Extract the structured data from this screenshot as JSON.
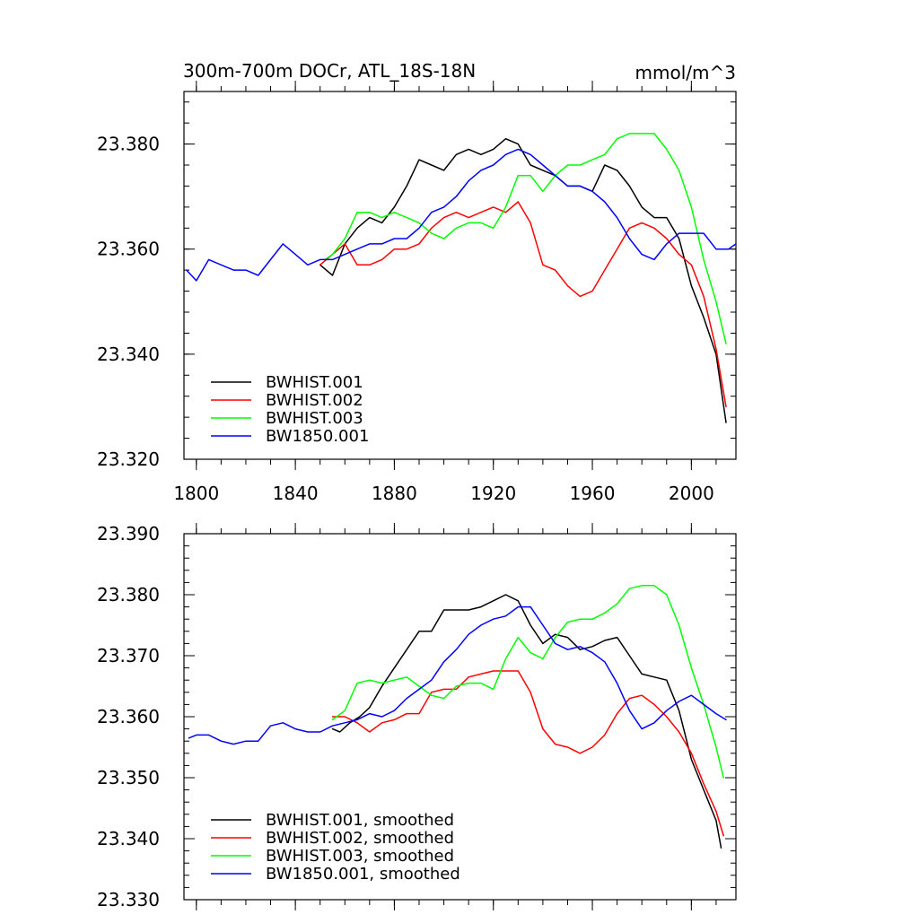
{
  "chart_data": [
    {
      "type": "line",
      "title": "300m-700m DOCr, ATL_18S-18N",
      "units": "mmol/m^3",
      "xlabel": "",
      "ylabel": "",
      "xlim": [
        1795,
        2018
      ],
      "ylim": [
        23.32,
        23.39
      ],
      "x_ticks": [
        1800,
        1840,
        1880,
        1920,
        1960,
        2000
      ],
      "y_ticks": [
        23.32,
        23.34,
        23.36,
        23.38
      ],
      "y_tick_labels": [
        "23.320",
        "23.340",
        "23.360",
        "23.380"
      ],
      "x_tick_labels": [
        "1800",
        "1840",
        "1880",
        "1920",
        "1960",
        "2000"
      ],
      "legend_position": "bottom-left",
      "series": [
        {
          "name": "BWHIST.001",
          "color": "#000000",
          "x": [
            1850,
            1855,
            1860,
            1865,
            1870,
            1875,
            1880,
            1885,
            1890,
            1895,
            1900,
            1905,
            1910,
            1915,
            1920,
            1925,
            1930,
            1935,
            1940,
            1945,
            1950,
            1955,
            1960,
            1965,
            1970,
            1975,
            1980,
            1985,
            1990,
            1995,
            2000,
            2005,
            2010,
            2014
          ],
          "values": [
            23.357,
            23.355,
            23.361,
            23.364,
            23.366,
            23.365,
            23.368,
            23.372,
            23.377,
            23.376,
            23.375,
            23.378,
            23.379,
            23.378,
            23.379,
            23.381,
            23.38,
            23.376,
            23.375,
            23.374,
            23.372,
            23.372,
            23.371,
            23.376,
            23.375,
            23.372,
            23.368,
            23.366,
            23.366,
            23.362,
            23.353,
            23.347,
            23.34,
            23.327
          ]
        },
        {
          "name": "BWHIST.002",
          "color": "#ff0000",
          "x": [
            1850,
            1855,
            1860,
            1865,
            1870,
            1875,
            1880,
            1885,
            1890,
            1895,
            1900,
            1905,
            1910,
            1915,
            1920,
            1925,
            1930,
            1935,
            1940,
            1945,
            1950,
            1955,
            1960,
            1965,
            1970,
            1975,
            1980,
            1985,
            1990,
            1995,
            2000,
            2005,
            2010,
            2014
          ],
          "values": [
            23.357,
            23.359,
            23.361,
            23.357,
            23.357,
            23.358,
            23.36,
            23.36,
            23.361,
            23.364,
            23.366,
            23.367,
            23.366,
            23.367,
            23.368,
            23.367,
            23.369,
            23.365,
            23.357,
            23.356,
            23.353,
            23.351,
            23.352,
            23.356,
            23.36,
            23.364,
            23.365,
            23.364,
            23.362,
            23.359,
            23.357,
            23.351,
            23.341,
            23.33
          ]
        },
        {
          "name": "BWHIST.003",
          "color": "#00ff00",
          "x": [
            1852,
            1855,
            1860,
            1865,
            1870,
            1875,
            1880,
            1885,
            1890,
            1895,
            1900,
            1905,
            1910,
            1915,
            1920,
            1925,
            1930,
            1935,
            1940,
            1945,
            1950,
            1955,
            1960,
            1965,
            1970,
            1975,
            1980,
            1985,
            1990,
            1995,
            2000,
            2005,
            2010,
            2014
          ],
          "values": [
            23.358,
            23.359,
            23.362,
            23.367,
            23.367,
            23.366,
            23.367,
            23.366,
            23.365,
            23.363,
            23.362,
            23.364,
            23.365,
            23.365,
            23.364,
            23.368,
            23.374,
            23.374,
            23.371,
            23.374,
            23.376,
            23.376,
            23.377,
            23.378,
            23.381,
            23.382,
            23.382,
            23.382,
            23.379,
            23.375,
            23.368,
            23.358,
            23.35,
            23.342
          ]
        },
        {
          "name": "BW1850.001",
          "color": "#0000ff",
          "x": [
            1796,
            1800,
            1805,
            1810,
            1815,
            1820,
            1825,
            1830,
            1835,
            1840,
            1845,
            1850,
            1855,
            1860,
            1865,
            1870,
            1875,
            1880,
            1885,
            1890,
            1895,
            1900,
            1905,
            1910,
            1915,
            1920,
            1925,
            1930,
            1935,
            1940,
            1945,
            1950,
            1955,
            1960,
            1965,
            1970,
            1975,
            1980,
            1985,
            1990,
            1995,
            2000,
            2005,
            2010,
            2015,
            2018
          ],
          "values": [
            23.356,
            23.354,
            23.358,
            23.357,
            23.356,
            23.356,
            23.355,
            23.358,
            23.361,
            23.359,
            23.357,
            23.358,
            23.358,
            23.359,
            23.36,
            23.361,
            23.361,
            23.362,
            23.362,
            23.364,
            23.367,
            23.368,
            23.37,
            23.373,
            23.375,
            23.376,
            23.378,
            23.379,
            23.378,
            23.376,
            23.374,
            23.372,
            23.372,
            23.371,
            23.369,
            23.366,
            23.362,
            23.359,
            23.358,
            23.361,
            23.363,
            23.363,
            23.363,
            23.36,
            23.36,
            23.361
          ]
        }
      ]
    },
    {
      "type": "line",
      "title": "",
      "xlabel": "",
      "ylabel": "",
      "xlim": [
        1795,
        2018
      ],
      "ylim": [
        23.33,
        23.39
      ],
      "x_ticks": [
        1800,
        1840,
        1880,
        1920,
        1960,
        2000
      ],
      "y_ticks": [
        23.33,
        23.34,
        23.35,
        23.36,
        23.37,
        23.38,
        23.39
      ],
      "y_tick_labels": [
        "23.330",
        "23.340",
        "23.350",
        "23.360",
        "23.370",
        "23.380",
        "23.390"
      ],
      "legend_position": "bottom-left",
      "series": [
        {
          "name": "BWHIST.001, smoothed",
          "color": "#000000",
          "x": [
            1855,
            1858,
            1862,
            1866,
            1870,
            1875,
            1880,
            1885,
            1890,
            1895,
            1900,
            1905,
            1910,
            1915,
            1920,
            1925,
            1930,
            1935,
            1940,
            1945,
            1950,
            1955,
            1960,
            1965,
            1970,
            1975,
            1980,
            1985,
            1990,
            1995,
            2000,
            2005,
            2010,
            2012
          ],
          "values": [
            23.358,
            23.3575,
            23.359,
            23.36,
            23.3615,
            23.365,
            23.368,
            23.371,
            23.374,
            23.374,
            23.3775,
            23.3775,
            23.3775,
            23.378,
            23.379,
            23.38,
            23.379,
            23.375,
            23.372,
            23.3735,
            23.373,
            23.371,
            23.3715,
            23.3725,
            23.373,
            23.37,
            23.367,
            23.3665,
            23.366,
            23.361,
            23.353,
            23.348,
            23.343,
            23.3385
          ]
        },
        {
          "name": "BWHIST.002, smoothed",
          "color": "#ff0000",
          "x": [
            1855,
            1860,
            1865,
            1870,
            1875,
            1880,
            1885,
            1890,
            1895,
            1900,
            1905,
            1910,
            1915,
            1920,
            1925,
            1930,
            1935,
            1940,
            1945,
            1950,
            1955,
            1960,
            1965,
            1970,
            1975,
            1980,
            1985,
            1990,
            1995,
            2000,
            2005,
            2010,
            2013
          ],
          "values": [
            23.36,
            23.36,
            23.359,
            23.3575,
            23.359,
            23.3595,
            23.3605,
            23.3605,
            23.364,
            23.3645,
            23.3645,
            23.3665,
            23.367,
            23.3675,
            23.3675,
            23.3675,
            23.364,
            23.358,
            23.3555,
            23.355,
            23.354,
            23.355,
            23.357,
            23.3605,
            23.363,
            23.3635,
            23.362,
            23.36,
            23.3575,
            23.354,
            23.349,
            23.3445,
            23.3405
          ]
        },
        {
          "name": "BWHIST.003, smoothed",
          "color": "#00ff00",
          "x": [
            1855,
            1860,
            1865,
            1870,
            1875,
            1880,
            1885,
            1890,
            1895,
            1900,
            1905,
            1910,
            1915,
            1920,
            1925,
            1930,
            1935,
            1940,
            1945,
            1950,
            1955,
            1960,
            1965,
            1970,
            1975,
            1980,
            1985,
            1990,
            1995,
            2000,
            2005,
            2010,
            2013
          ],
          "values": [
            23.3595,
            23.361,
            23.3655,
            23.366,
            23.3655,
            23.366,
            23.3665,
            23.365,
            23.3635,
            23.363,
            23.365,
            23.3655,
            23.3655,
            23.3645,
            23.3695,
            23.373,
            23.3705,
            23.3695,
            23.373,
            23.3755,
            23.376,
            23.376,
            23.377,
            23.3785,
            23.381,
            23.3815,
            23.3815,
            23.38,
            23.375,
            23.368,
            23.362,
            23.355,
            23.35
          ]
        },
        {
          "name": "BW1850.001, smoothed",
          "color": "#0000ff",
          "x": [
            1797,
            1800,
            1805,
            1810,
            1815,
            1820,
            1825,
            1830,
            1835,
            1840,
            1845,
            1850,
            1855,
            1860,
            1865,
            1870,
            1875,
            1880,
            1885,
            1890,
            1895,
            1900,
            1905,
            1910,
            1915,
            1920,
            1925,
            1930,
            1935,
            1940,
            1945,
            1950,
            1955,
            1960,
            1965,
            1970,
            1975,
            1980,
            1985,
            1990,
            1995,
            2000,
            2005,
            2010,
            2014
          ],
          "values": [
            23.3565,
            23.357,
            23.357,
            23.356,
            23.3555,
            23.356,
            23.356,
            23.3585,
            23.359,
            23.358,
            23.3575,
            23.3575,
            23.3585,
            23.359,
            23.3595,
            23.3605,
            23.36,
            23.361,
            23.363,
            23.3645,
            23.366,
            23.369,
            23.371,
            23.3735,
            23.375,
            23.376,
            23.3765,
            23.378,
            23.378,
            23.375,
            23.372,
            23.371,
            23.3715,
            23.3705,
            23.369,
            23.3655,
            23.361,
            23.358,
            23.359,
            23.361,
            23.3625,
            23.3635,
            23.362,
            23.3605,
            23.3595
          ]
        }
      ]
    }
  ]
}
